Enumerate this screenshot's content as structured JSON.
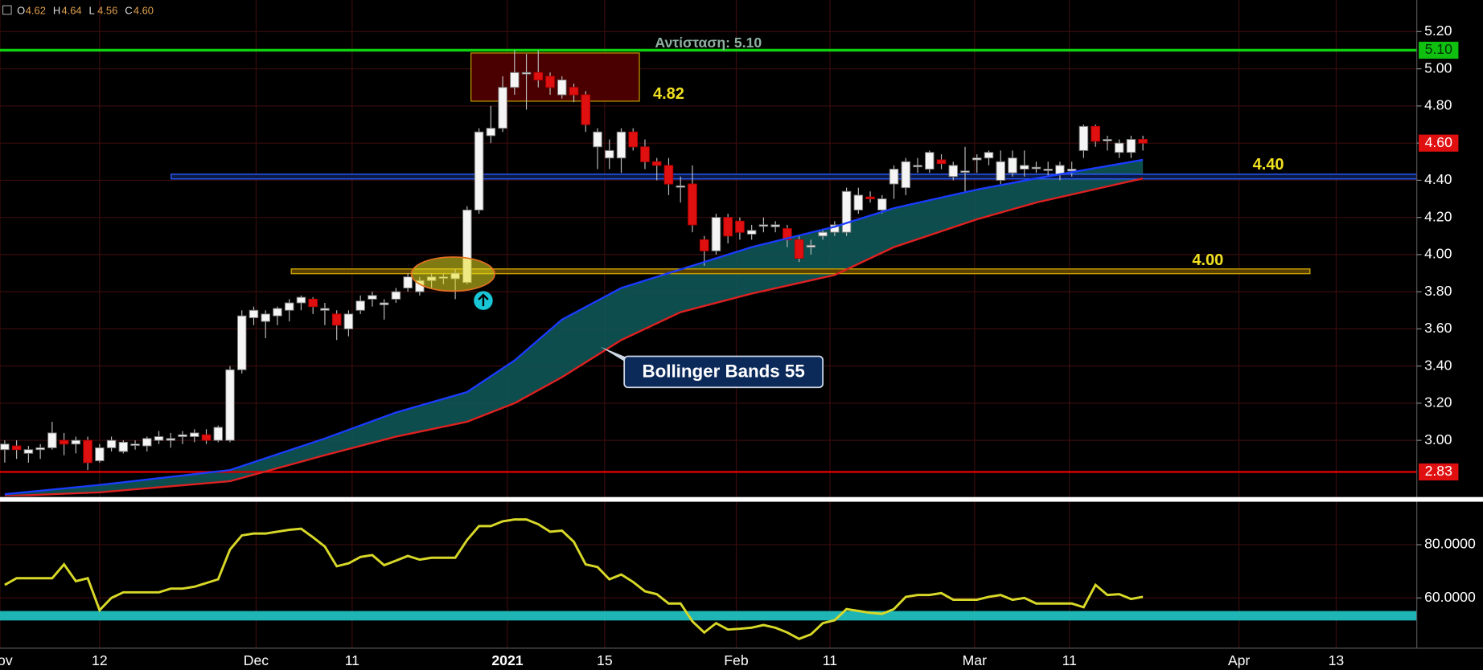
{
  "chart_data": [
    {
      "type": "candlestick",
      "header": [
        {
          "label": "O",
          "value": "4.62"
        },
        {
          "label": "H",
          "value": "4.64"
        },
        {
          "label": "L",
          "value": "4.56"
        },
        {
          "label": "C",
          "value": "4.60"
        }
      ],
      "ylim": [
        2.7,
        5.37
      ],
      "yticks": [
        {
          "value": 3.0,
          "label": "3.00"
        },
        {
          "value": 3.2,
          "label": "3.20"
        },
        {
          "value": 3.4,
          "label": "3.40"
        },
        {
          "value": 3.6,
          "label": "3.60"
        },
        {
          "value": 3.8,
          "label": "3.80"
        },
        {
          "value": 4.0,
          "label": "4.00"
        },
        {
          "value": 4.2,
          "label": "4.20"
        },
        {
          "value": 4.4,
          "label": "4.40"
        },
        {
          "value": 4.6,
          "label": "4.60"
        },
        {
          "value": 4.8,
          "label": "4.80"
        },
        {
          "value": 5.0,
          "label": "5.00"
        },
        {
          "value": 5.2,
          "label": "5.20"
        }
      ],
      "xlim": [
        -0.4,
        119.1
      ],
      "xticks": [
        {
          "value": -0.4,
          "label": "Nov"
        },
        {
          "value": 8.0,
          "label": "12"
        },
        {
          "value": 21.2,
          "label": "Dec"
        },
        {
          "value": 29.3,
          "label": "11"
        },
        {
          "value": 42.4,
          "label": "2021"
        },
        {
          "value": 50.6,
          "label": "15"
        },
        {
          "value": 61.7,
          "label": "Feb"
        },
        {
          "value": 69.6,
          "label": "11"
        },
        {
          "value": 81.8,
          "label": "Mar"
        },
        {
          "value": 89.8,
          "label": "11"
        },
        {
          "value": 104.1,
          "label": "Apr"
        },
        {
          "value": 112.3,
          "label": "13"
        }
      ],
      "candles": [
        [
          2.95,
          3.0,
          2.88,
          2.98
        ],
        [
          2.97,
          3.0,
          2.9,
          2.95
        ],
        [
          2.93,
          2.97,
          2.88,
          2.95
        ],
        [
          2.95,
          2.98,
          2.9,
          2.96
        ],
        [
          2.96,
          3.1,
          2.95,
          3.04
        ],
        [
          3.0,
          3.04,
          2.92,
          2.98
        ],
        [
          2.98,
          3.02,
          2.93,
          3.0
        ],
        [
          3.0,
          3.02,
          2.84,
          2.88
        ],
        [
          2.89,
          2.98,
          2.88,
          2.96
        ],
        [
          2.96,
          3.02,
          2.94,
          3.0
        ],
        [
          2.94,
          3.0,
          2.93,
          2.99
        ],
        [
          2.98,
          3.0,
          2.95,
          2.98
        ],
        [
          2.97,
          3.02,
          2.94,
          3.01
        ],
        [
          3.0,
          3.05,
          2.98,
          3.02
        ],
        [
          3.0,
          3.04,
          2.96,
          3.01
        ],
        [
          3.02,
          3.05,
          2.98,
          3.03
        ],
        [
          3.02,
          3.06,
          2.99,
          3.04
        ],
        [
          3.03,
          3.06,
          2.98,
          3.0
        ],
        [
          3.0,
          3.08,
          2.99,
          3.07
        ],
        [
          3.0,
          3.4,
          2.99,
          3.38
        ],
        [
          3.38,
          3.7,
          3.36,
          3.67
        ],
        [
          3.66,
          3.72,
          3.62,
          3.7
        ],
        [
          3.64,
          3.7,
          3.55,
          3.68
        ],
        [
          3.67,
          3.72,
          3.62,
          3.71
        ],
        [
          3.7,
          3.76,
          3.64,
          3.74
        ],
        [
          3.74,
          3.78,
          3.7,
          3.77
        ],
        [
          3.76,
          3.77,
          3.68,
          3.72
        ],
        [
          3.7,
          3.74,
          3.62,
          3.71
        ],
        [
          3.68,
          3.7,
          3.54,
          3.62
        ],
        [
          3.6,
          3.7,
          3.56,
          3.68
        ],
        [
          3.7,
          3.78,
          3.68,
          3.75
        ],
        [
          3.76,
          3.8,
          3.72,
          3.78
        ],
        [
          3.73,
          3.76,
          3.65,
          3.74
        ],
        [
          3.76,
          3.82,
          3.74,
          3.8
        ],
        [
          3.82,
          3.9,
          3.8,
          3.88
        ],
        [
          3.8,
          3.88,
          3.78,
          3.86
        ],
        [
          3.86,
          3.9,
          3.82,
          3.88
        ],
        [
          3.88,
          3.9,
          3.84,
          3.88
        ],
        [
          3.87,
          3.92,
          3.76,
          3.9
        ],
        [
          3.85,
          4.26,
          3.84,
          4.24
        ],
        [
          4.24,
          4.68,
          4.22,
          4.66
        ],
        [
          4.64,
          4.8,
          4.6,
          4.68
        ],
        [
          4.68,
          4.96,
          4.66,
          4.9
        ],
        [
          4.9,
          5.1,
          4.86,
          4.98
        ],
        [
          4.98,
          5.08,
          4.78,
          4.98
        ],
        [
          4.98,
          5.1,
          4.9,
          4.94
        ],
        [
          4.96,
          4.98,
          4.86,
          4.9
        ],
        [
          4.86,
          4.96,
          4.84,
          4.94
        ],
        [
          4.9,
          4.92,
          4.82,
          4.86
        ],
        [
          4.86,
          4.88,
          4.66,
          4.7
        ],
        [
          4.58,
          4.68,
          4.46,
          4.66
        ],
        [
          4.52,
          4.62,
          4.46,
          4.56
        ],
        [
          4.52,
          4.68,
          4.44,
          4.66
        ],
        [
          4.66,
          4.68,
          4.56,
          4.58
        ],
        [
          4.58,
          4.62,
          4.46,
          4.5
        ],
        [
          4.5,
          4.52,
          4.4,
          4.48
        ],
        [
          4.48,
          4.52,
          4.32,
          4.38
        ],
        [
          4.37,
          4.42,
          4.28,
          4.37
        ],
        [
          4.38,
          4.48,
          4.12,
          4.16
        ],
        [
          4.08,
          4.1,
          3.94,
          4.02
        ],
        [
          4.02,
          4.22,
          4.0,
          4.2
        ],
        [
          4.2,
          4.22,
          4.06,
          4.1
        ],
        [
          4.18,
          4.2,
          4.08,
          4.12
        ],
        [
          4.11,
          4.16,
          4.08,
          4.13
        ],
        [
          4.16,
          4.2,
          4.12,
          4.16
        ],
        [
          4.15,
          4.18,
          4.12,
          4.16
        ],
        [
          4.14,
          4.16,
          4.04,
          4.08
        ],
        [
          4.08,
          4.1,
          3.96,
          3.98
        ],
        [
          4.04,
          4.08,
          4.0,
          4.05
        ],
        [
          4.1,
          4.14,
          4.08,
          4.12
        ],
        [
          4.12,
          4.18,
          4.1,
          4.16
        ],
        [
          4.12,
          4.36,
          4.1,
          4.34
        ],
        [
          4.24,
          4.36,
          4.22,
          4.32
        ],
        [
          4.31,
          4.34,
          4.28,
          4.3
        ],
        [
          4.24,
          4.32,
          4.22,
          4.3
        ],
        [
          4.38,
          4.48,
          4.3,
          4.46
        ],
        [
          4.36,
          4.52,
          4.32,
          4.5
        ],
        [
          4.48,
          4.52,
          4.44,
          4.48
        ],
        [
          4.46,
          4.56,
          4.44,
          4.55
        ],
        [
          4.51,
          4.54,
          4.46,
          4.49
        ],
        [
          4.42,
          4.5,
          4.4,
          4.48
        ],
        [
          4.45,
          4.58,
          4.34,
          4.45
        ],
        [
          4.51,
          4.54,
          4.44,
          4.52
        ],
        [
          4.52,
          4.56,
          4.48,
          4.55
        ],
        [
          4.4,
          4.56,
          4.38,
          4.5
        ],
        [
          4.44,
          4.56,
          4.42,
          4.52
        ],
        [
          4.46,
          4.56,
          4.42,
          4.48
        ],
        [
          4.47,
          4.5,
          4.44,
          4.47
        ],
        [
          4.46,
          4.5,
          4.42,
          4.46
        ],
        [
          4.43,
          4.5,
          4.4,
          4.48
        ],
        [
          4.45,
          4.5,
          4.42,
          4.46
        ],
        [
          4.56,
          4.7,
          4.52,
          4.69
        ],
        [
          4.69,
          4.7,
          4.58,
          4.61
        ],
        [
          4.62,
          4.64,
          4.56,
          4.62
        ],
        [
          4.55,
          4.62,
          4.52,
          4.6
        ],
        [
          4.55,
          4.64,
          4.52,
          4.62
        ],
        [
          4.62,
          4.64,
          4.56,
          4.6
        ]
      ],
      "series": [
        {
          "color": "#1a3cff",
          "x": [
            0,
            8,
            19,
            27,
            33,
            39,
            43,
            47,
            52,
            57,
            63,
            70,
            75,
            82,
            87,
            96
          ],
          "values": [
            2.71,
            2.76,
            2.84,
            3.01,
            3.15,
            3.26,
            3.43,
            3.65,
            3.82,
            3.92,
            4.04,
            4.15,
            4.25,
            4.35,
            4.41,
            4.51
          ]
        },
        {
          "color": "#e02020",
          "x": [
            0,
            8,
            19,
            27,
            33,
            39,
            43,
            47,
            52,
            57,
            63,
            70,
            75,
            82,
            87,
            96
          ],
          "values": [
            2.7,
            2.72,
            2.78,
            2.92,
            3.02,
            3.1,
            3.2,
            3.34,
            3.54,
            3.69,
            3.79,
            3.89,
            4.04,
            4.19,
            4.28,
            4.41
          ]
        }
      ],
      "band_color": "#0f5a5a",
      "levels": [
        {
          "value": 5.1,
          "color": "#10d010"
        },
        {
          "value": 4.42,
          "color": "#2a5cff"
        },
        {
          "value": 3.91,
          "color": "#c8a000"
        },
        {
          "value": 2.83,
          "color": "#e00000"
        }
      ],
      "price_tags": [
        {
          "value": 5.1,
          "label": "5.10",
          "color": "#10c010"
        },
        {
          "value": 4.6,
          "label": "4.60",
          "color": "#e01010"
        },
        {
          "value": 2.83,
          "label": "2.83",
          "color": "#e01010"
        }
      ],
      "annotations": [
        "Αντίσταση: 5.10",
        "4.82",
        "4.40",
        "4.00",
        "Bollinger Bands 55"
      ]
    },
    {
      "type": "line",
      "ylim": [
        41.1,
        95.8
      ],
      "yticks": [
        {
          "value": 60,
          "label": "60.0000"
        },
        {
          "value": 80,
          "label": "80.0000"
        }
      ],
      "color": "#d8d828",
      "band": 53.3,
      "band_color": "#1fb5b5",
      "values": [
        64.9,
        67.4,
        67.4,
        67.4,
        67.4,
        72.6,
        66.3,
        67.4,
        55.4,
        60,
        62.1,
        62.1,
        62.1,
        62.1,
        63.5,
        63.5,
        64.2,
        65.6,
        67,
        78.2,
        83.5,
        84.2,
        84.2,
        84.9,
        85.6,
        86,
        82.8,
        79.3,
        71.9,
        73,
        75.4,
        76.1,
        72.3,
        74,
        75.8,
        74.4,
        75.1,
        75.1,
        75.1,
        81.8,
        87,
        87,
        88.8,
        89.5,
        89.5,
        87.7,
        84.9,
        85.3,
        81.1,
        72.6,
        71.6,
        67,
        68.8,
        66,
        62.5,
        61.4,
        57.9,
        57.9,
        51.2,
        47,
        50.5,
        48.1,
        48.4,
        48.8,
        49.8,
        48.8,
        47,
        44.6,
        46.3,
        50.5,
        51.6,
        55.8,
        55.1,
        54.4,
        54,
        55.8,
        60.4,
        61.1,
        61.1,
        61.8,
        59.3,
        59.3,
        59.3,
        60.4,
        61.1,
        59.3,
        60,
        57.9,
        57.9,
        57.9,
        57.9,
        56.5,
        64.9,
        61.1,
        61.4,
        59.6,
        60.4
      ]
    }
  ]
}
